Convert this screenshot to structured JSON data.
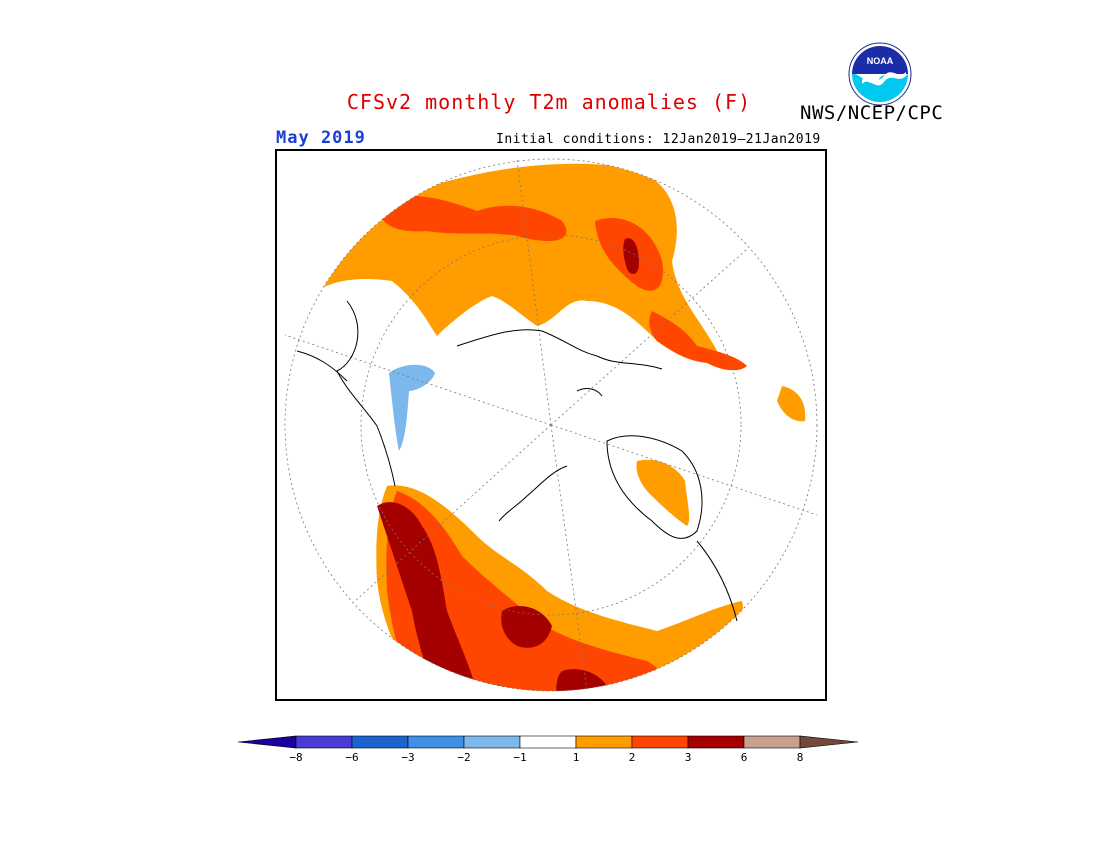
{
  "header": {
    "title": "CFSv2 monthly T2m anomalies (F)",
    "title_color": "#dd0000",
    "organization": "NWS/NCEP/CPC",
    "logo_text": "NOAA",
    "valid_month": "May 2019",
    "valid_month_color": "#1a3fd6",
    "initial_conditions": "Initial conditions: 12Jan2019–21Jan2019"
  },
  "map": {
    "projection": "north-polar-stereographic",
    "background": "#ffffff"
  },
  "legend": {
    "bins": [
      {
        "color": "#1c009e"
      },
      {
        "color": "#4a3ad6"
      },
      {
        "color": "#1a64d2"
      },
      {
        "color": "#3e8fe8"
      },
      {
        "color": "#7cb8ee"
      },
      {
        "color": "#ffffff"
      },
      {
        "color": "#ff9d00"
      },
      {
        "color": "#ff4600"
      },
      {
        "color": "#a50000"
      },
      {
        "color": "#c9a08e"
      },
      {
        "color": "#74483a"
      }
    ],
    "ticks": [
      "−8",
      "−6",
      "−3",
      "−2",
      "−1",
      "1",
      "2",
      "3",
      "6",
      "8"
    ]
  }
}
